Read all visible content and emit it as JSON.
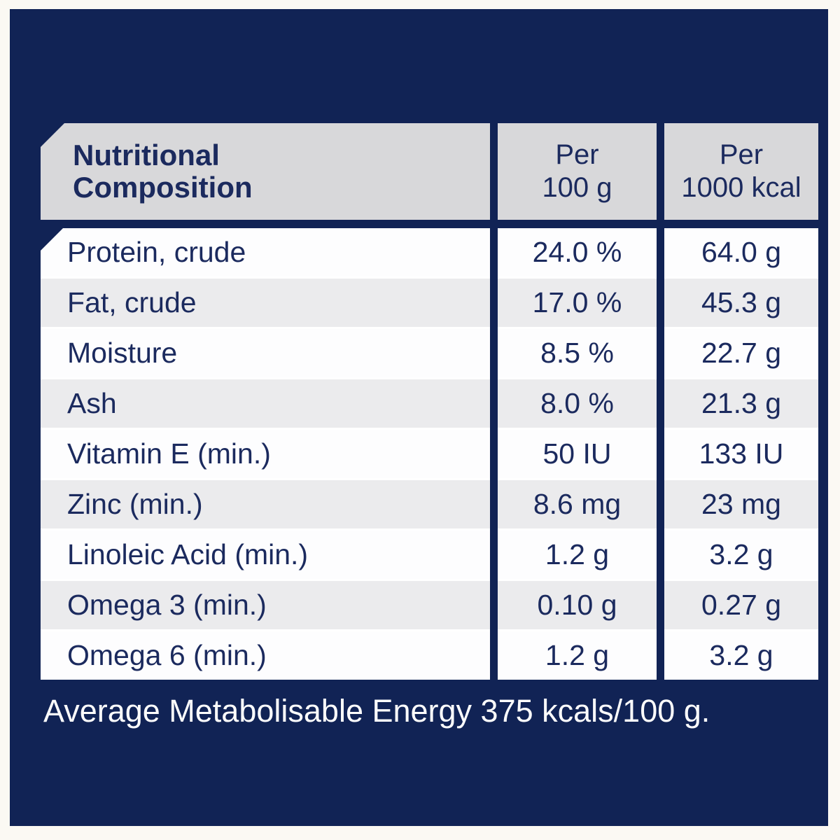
{
  "colors": {
    "frame_background": "#fbf9f3",
    "panel_navy": "#112355",
    "text_navy": "#1b2a5e",
    "header_gray": "#d8d8da",
    "row_gray": "#ebebed",
    "row_white": "#fdfdfe",
    "footer_text": "#fcfcfc"
  },
  "table": {
    "columns": {
      "main": {
        "line1": "Nutritional",
        "line2": "Composition"
      },
      "per_100g": {
        "line1": "Per",
        "line2": "100 g"
      },
      "per_1000kcal": {
        "line1": "Per",
        "line2": "1000 kcal"
      }
    },
    "rows": [
      {
        "label": "Protein, crude",
        "per_100g": "24.0 %",
        "per_1000kcal": "64.0 g"
      },
      {
        "label": "Fat, crude",
        "per_100g": "17.0 %",
        "per_1000kcal": "45.3 g"
      },
      {
        "label": "Moisture",
        "per_100g": "8.5 %",
        "per_1000kcal": "22.7 g"
      },
      {
        "label": "Ash",
        "per_100g": "8.0 %",
        "per_1000kcal": "21.3 g"
      },
      {
        "label": "Vitamin E (min.)",
        "per_100g": "50 IU",
        "per_1000kcal": "133 IU"
      },
      {
        "label": "Zinc (min.)",
        "per_100g": "8.6 mg",
        "per_1000kcal": "23 mg"
      },
      {
        "label": "Linoleic Acid (min.)",
        "per_100g": "1.2 g",
        "per_1000kcal": "3.2 g"
      },
      {
        "label": "Omega 3 (min.)",
        "per_100g": "0.10 g",
        "per_1000kcal": "0.27 g"
      },
      {
        "label": "Omega 6 (min.)",
        "per_100g": "1.2 g",
        "per_1000kcal": "3.2 g"
      }
    ]
  },
  "footer": {
    "note": "Average Metabolisable Energy 375 kcals/100 g."
  }
}
